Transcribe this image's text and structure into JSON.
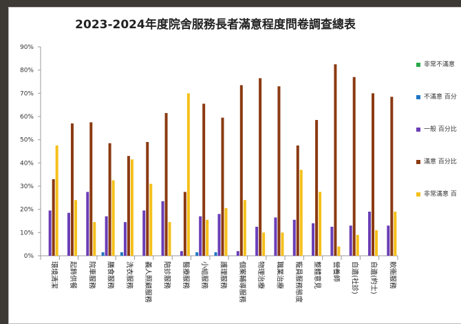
{
  "chart_data": {
    "type": "bar",
    "title": "2023-2024年度院舍服務長者滿意程度問卷調查總表",
    "ylim": [
      0,
      90
    ],
    "y_tick_labels": [
      "0%",
      "10%",
      "20%",
      "30%",
      "40%",
      "50%",
      "60%",
      "70%",
      "80%",
      "90%"
    ],
    "grid": false,
    "legend_position": "right",
    "categories": [
      "環境清潔",
      "起飾供餐",
      "院車服務",
      "膳食服務",
      "洗衣服務",
      "義人照顧服務",
      "陪診服務",
      "醫療服務",
      "小組服務",
      "護理服務",
      "個案輔導服務",
      "物理治療",
      "職業治療",
      "寵員服務態度",
      "整體意見",
      "營養師",
      "自遺(社診)",
      "自遺(約士)",
      "軟衞服務"
    ],
    "series": [
      {
        "name": "非常不滿意",
        "color": "#2aa84a",
        "values": [
          0,
          0,
          0,
          0,
          0,
          0,
          0,
          0,
          0,
          0,
          0,
          0,
          0,
          0,
          0,
          0,
          0,
          0,
          0
        ]
      },
      {
        "name": "不滿意 百分",
        "color": "#1f77c4",
        "values": [
          0,
          0,
          0,
          1.5,
          1.5,
          0,
          0,
          0,
          1.5,
          1.5,
          0,
          0,
          0,
          0,
          0,
          0,
          0,
          0,
          0
        ]
      },
      {
        "name": "一般 百分比",
        "color": "#6a3db6",
        "values": [
          19.5,
          18.5,
          27.5,
          17,
          14.5,
          19.5,
          23.5,
          2,
          17,
          18,
          2,
          12.5,
          16.5,
          15.5,
          14,
          12.5,
          13,
          19,
          13
        ]
      },
      {
        "name": "滿意 百分比",
        "color": "#8b3a12",
        "values": [
          33,
          57,
          57.5,
          48.5,
          43,
          49,
          61.5,
          27.5,
          65.5,
          59.5,
          73.5,
          76.5,
          73,
          47.5,
          58.5,
          82.5,
          77,
          70,
          68.5
        ]
      },
      {
        "name": "非常滿意 百",
        "color": "#f5c01a",
        "values": [
          47.5,
          24,
          14.5,
          32.5,
          41.5,
          31,
          14.5,
          70,
          15.5,
          20.5,
          24,
          10,
          10,
          37,
          27.5,
          4,
          9,
          11,
          19
        ]
      }
    ]
  }
}
